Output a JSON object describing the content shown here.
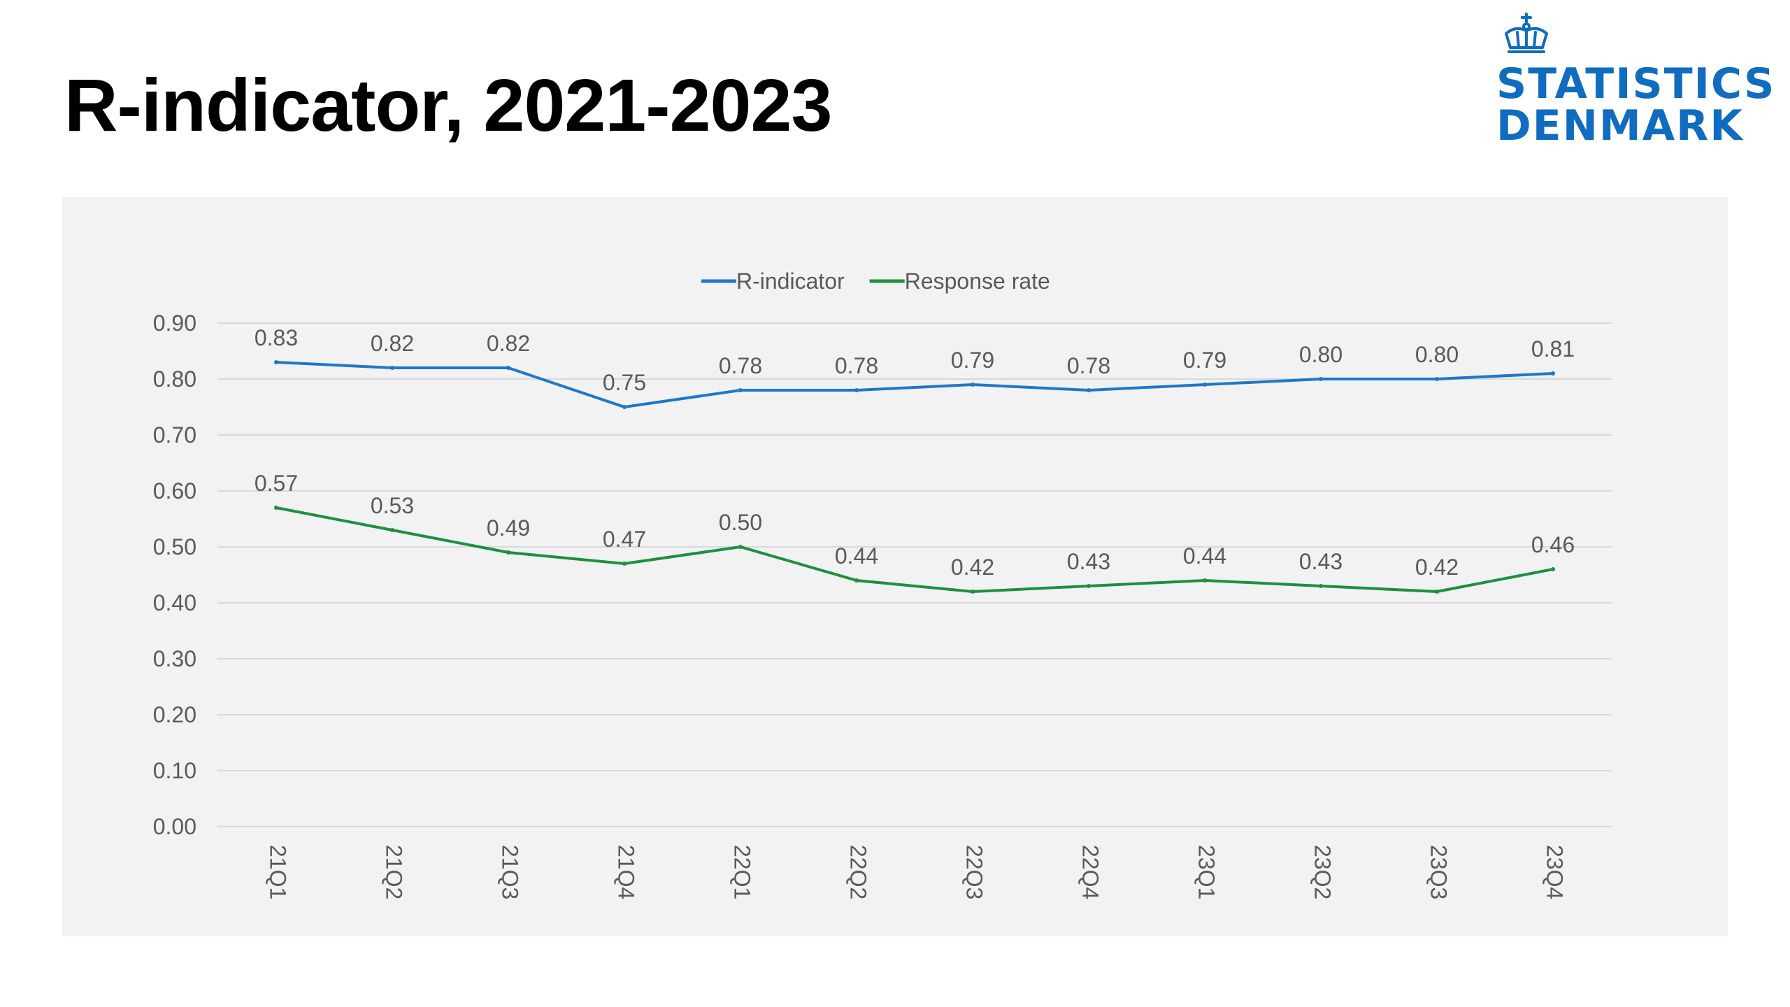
{
  "title": "R-indicator, 2021-2023",
  "logo": {
    "line1": "STATISTICS",
    "line2": "DENMARK",
    "icon": "crown-icon",
    "color": "#0f6cbf"
  },
  "chart_data": {
    "type": "line",
    "categories": [
      "21Q1",
      "21Q2",
      "21Q3",
      "21Q4",
      "22Q1",
      "22Q2",
      "22Q3",
      "22Q4",
      "23Q1",
      "23Q2",
      "23Q3",
      "23Q4"
    ],
    "series": [
      {
        "name": "R-indicator",
        "color": "#1f77c9",
        "values": [
          0.83,
          0.82,
          0.82,
          0.75,
          0.78,
          0.78,
          0.79,
          0.78,
          0.79,
          0.8,
          0.8,
          0.81
        ],
        "labels": [
          "0.83",
          "0.82",
          "0.82",
          "0.75",
          "0.78",
          "0.78",
          "0.79",
          "0.78",
          "0.79",
          "0.80",
          "0.80",
          "0.81"
        ]
      },
      {
        "name": "Response rate",
        "color": "#1f8f3f",
        "values": [
          0.57,
          0.53,
          0.49,
          0.47,
          0.5,
          0.44,
          0.42,
          0.43,
          0.44,
          0.43,
          0.42,
          0.46
        ],
        "labels": [
          "0.57",
          "0.53",
          "0.49",
          "0.47",
          "0.50",
          "0.44",
          "0.42",
          "0.43",
          "0.44",
          "0.43",
          "0.42",
          "0.46"
        ]
      }
    ],
    "yticks": [
      "0.00",
      "0.10",
      "0.20",
      "0.30",
      "0.40",
      "0.50",
      "0.60",
      "0.70",
      "0.80",
      "0.90"
    ],
    "ylim": [
      0,
      0.9
    ],
    "xlabel": "",
    "ylabel": "",
    "grid": true,
    "legend_position": "top-center"
  }
}
